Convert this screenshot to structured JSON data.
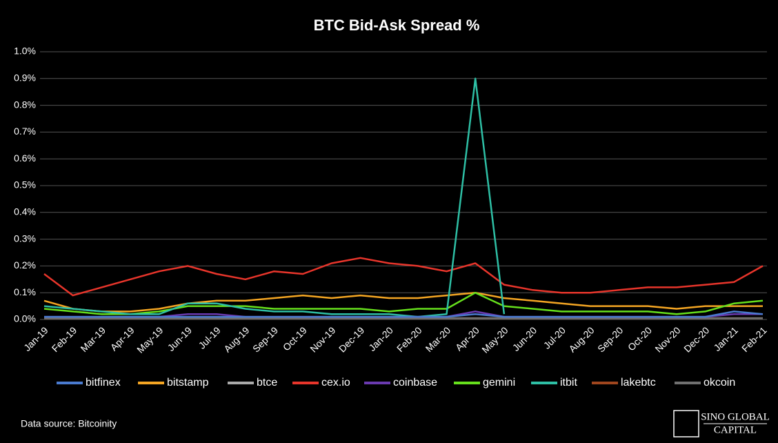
{
  "chart_data": {
    "type": "line",
    "title": "BTC Bid-Ask Spread %",
    "categories": [
      "Jan-19",
      "Feb-19",
      "Mar-19",
      "Apr-19",
      "May-19",
      "Jun-19",
      "Jul-19",
      "Aug-19",
      "Sep-19",
      "Oct-19",
      "Nov-19",
      "Dec-19",
      "Jan-20",
      "Feb-20",
      "Mar-20",
      "Apr-20",
      "May-20",
      "Jun-20",
      "Jul-20",
      "Aug-20",
      "Sep-20",
      "Oct-20",
      "Nov-20",
      "Dec-20",
      "Jan-21",
      "Feb-21"
    ],
    "series": [
      {
        "name": "bitfinex",
        "color": "#4a7bd0",
        "values": [
          0.01,
          0.01,
          0.01,
          0.01,
          0.01,
          0.01,
          0.01,
          0.01,
          0.01,
          0.01,
          0.01,
          0.01,
          0.01,
          0.01,
          0.01,
          0.02,
          0.01,
          0.01,
          0.01,
          0.01,
          0.01,
          0.01,
          0.01,
          0.01,
          0.03,
          0.02
        ]
      },
      {
        "name": "bitstamp",
        "color": "#f5a623",
        "values": [
          0.07,
          0.04,
          0.03,
          0.03,
          0.04,
          0.06,
          0.07,
          0.07,
          0.08,
          0.09,
          0.08,
          0.09,
          0.08,
          0.08,
          0.09,
          0.1,
          0.08,
          0.07,
          0.06,
          0.05,
          0.05,
          0.05,
          0.04,
          0.05,
          0.05,
          0.05
        ]
      },
      {
        "name": "btce",
        "color": "#aaaaaa",
        "values": [
          0.005,
          0.005,
          0.005,
          0.005,
          0.005,
          0.005,
          0.005,
          0.005,
          0.005,
          0.005,
          0.005,
          0.005,
          0.005,
          0.005,
          0.005,
          0.005,
          0.005,
          0.005,
          0.005,
          0.005,
          0.005,
          0.005,
          0.005,
          0.005,
          0.005,
          0.005
        ]
      },
      {
        "name": "cex.io",
        "color": "#e8352b",
        "values": [
          0.17,
          0.09,
          0.12,
          0.15,
          0.18,
          0.2,
          0.17,
          0.15,
          0.18,
          0.17,
          0.21,
          0.23,
          0.21,
          0.2,
          0.18,
          0.21,
          0.13,
          0.11,
          0.1,
          0.1,
          0.11,
          0.12,
          0.12,
          0.13,
          0.14,
          0.2
        ]
      },
      {
        "name": "coinbase",
        "color": "#6a3ab0",
        "values": [
          0.01,
          0.01,
          0.01,
          0.01,
          0.01,
          0.02,
          0.02,
          0.01,
          0.01,
          0.01,
          0.01,
          0.01,
          0.01,
          0.01,
          0.01,
          0.03,
          0.01,
          0.01,
          0.01,
          0.01,
          0.01,
          0.01,
          0.01,
          0.01,
          0.02,
          0.02
        ]
      },
      {
        "name": "gemini",
        "color": "#66e01c",
        "values": [
          0.04,
          0.03,
          0.02,
          0.02,
          0.03,
          0.05,
          0.05,
          0.05,
          0.04,
          0.04,
          0.04,
          0.04,
          0.03,
          0.04,
          0.04,
          0.1,
          0.05,
          0.04,
          0.03,
          0.03,
          0.03,
          0.03,
          0.02,
          0.03,
          0.06,
          0.07
        ]
      },
      {
        "name": "itbit",
        "color": "#2ebfa5",
        "values": [
          0.05,
          0.04,
          0.03,
          0.02,
          0.02,
          0.06,
          0.06,
          0.04,
          0.03,
          0.03,
          0.02,
          0.02,
          0.02,
          0.01,
          0.02,
          0.9,
          0.02,
          null,
          null,
          null,
          null,
          null,
          null,
          null,
          null,
          null
        ]
      },
      {
        "name": "lakebtc",
        "color": "#a0461e",
        "values": [
          0.005,
          0.005,
          0.005,
          0.005,
          0.005,
          0.005,
          0.005,
          0.005,
          0.005,
          0.005,
          0.005,
          0.005,
          0.005,
          0.005,
          0.005,
          0.005,
          0.005,
          0.005,
          0.005,
          0.005,
          0.005,
          0.005,
          0.005,
          0.005,
          0.005,
          0.005
        ]
      },
      {
        "name": "okcoin",
        "color": "#707070",
        "values": [
          0.005,
          0.005,
          0.005,
          0.005,
          0.005,
          0.005,
          0.005,
          0.005,
          0.005,
          0.005,
          0.005,
          0.005,
          0.005,
          0.005,
          0.005,
          0.005,
          0.005,
          0.005,
          0.005,
          0.005,
          0.005,
          0.005,
          0.005,
          0.005,
          0.005,
          0.005
        ]
      }
    ],
    "ylim": [
      0,
      1.0
    ],
    "yticks": [
      {
        "value": 0,
        "label": "0.0%"
      },
      {
        "value": 0.1,
        "label": "0.1%"
      },
      {
        "value": 0.2,
        "label": "0.2%"
      },
      {
        "value": 0.3,
        "label": "0.3%"
      },
      {
        "value": 0.4,
        "label": "0.4%"
      },
      {
        "value": 0.5,
        "label": "0.5%"
      },
      {
        "value": 0.6,
        "label": "0.6%"
      },
      {
        "value": 0.7,
        "label": "0.7%"
      },
      {
        "value": 0.8,
        "label": "0.8%"
      },
      {
        "value": 0.9,
        "label": "0.9%"
      },
      {
        "value": 1.0,
        "label": "1.0%"
      }
    ],
    "grid": true,
    "legend": "bottom",
    "source": "Data source: Bitcoinity",
    "logo": [
      "SINO GLOBAL",
      "CAPITAL"
    ]
  }
}
